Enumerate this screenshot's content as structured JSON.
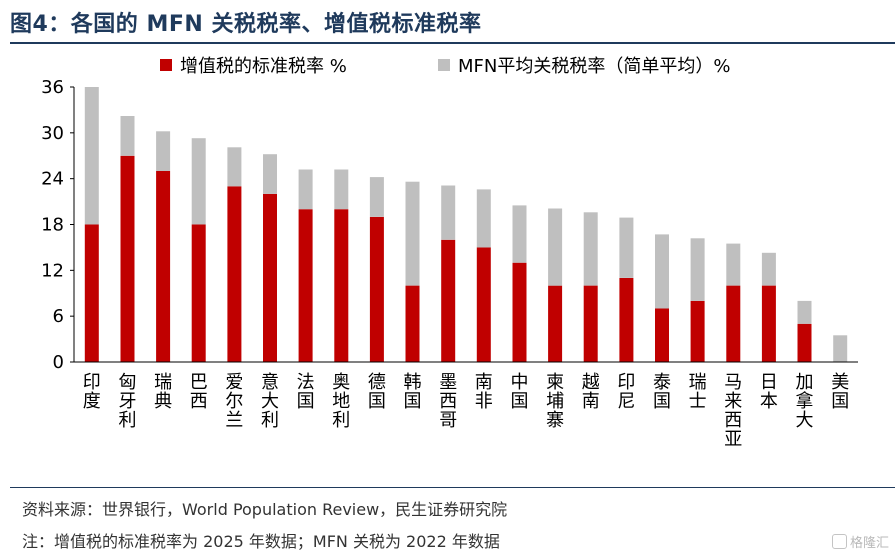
{
  "header": {
    "title": "图4：各国的 MFN 关税税率、增值税标准税率"
  },
  "footer": {
    "source": "资料来源：世界银行，World Population Review，民生证券研究院",
    "note": "注：增值税的标准税率为 2025 年数据；MFN 关税为 2022 年数据",
    "watermark": "格隆汇"
  },
  "colors": {
    "vat": "#C00000",
    "mfn": "#BFBFBF",
    "title": "#1F3A5C"
  },
  "chart_data": {
    "type": "bar",
    "stacked": true,
    "categories": [
      "印度",
      "匈牙利",
      "瑞典",
      "巴西",
      "爱尔兰",
      "意大利",
      "法国",
      "奥地利",
      "德国",
      "韩国",
      "墨西哥",
      "南非",
      "中国",
      "柬埔寨",
      "越南",
      "印尼",
      "泰国",
      "瑞士",
      "马来西亚",
      "日本",
      "加拿大",
      "美国"
    ],
    "series": [
      {
        "name": "增值税的标准税率 %",
        "color": "#C00000",
        "values": [
          18,
          27,
          25,
          18,
          23,
          22,
          20,
          20,
          19,
          10,
          16,
          15,
          13,
          10,
          10,
          11,
          7,
          8,
          10,
          10,
          5,
          0
        ]
      },
      {
        "name": "MFN平均关税税率（简单平均）%",
        "color": "#BFBFBF",
        "values": [
          18,
          5.2,
          5.2,
          11.3,
          5.1,
          5.2,
          5.2,
          5.2,
          5.2,
          13.6,
          7.1,
          7.6,
          7.5,
          10.1,
          9.6,
          7.9,
          9.7,
          8.2,
          5.5,
          4.3,
          3.0,
          3.5
        ]
      }
    ],
    "ylim": [
      0,
      36
    ],
    "yticks": [
      "0",
      "6",
      "12",
      "18",
      "24",
      "30",
      "36"
    ],
    "xlabel": "",
    "ylabel": "",
    "grid": false,
    "legend_position": "top"
  }
}
